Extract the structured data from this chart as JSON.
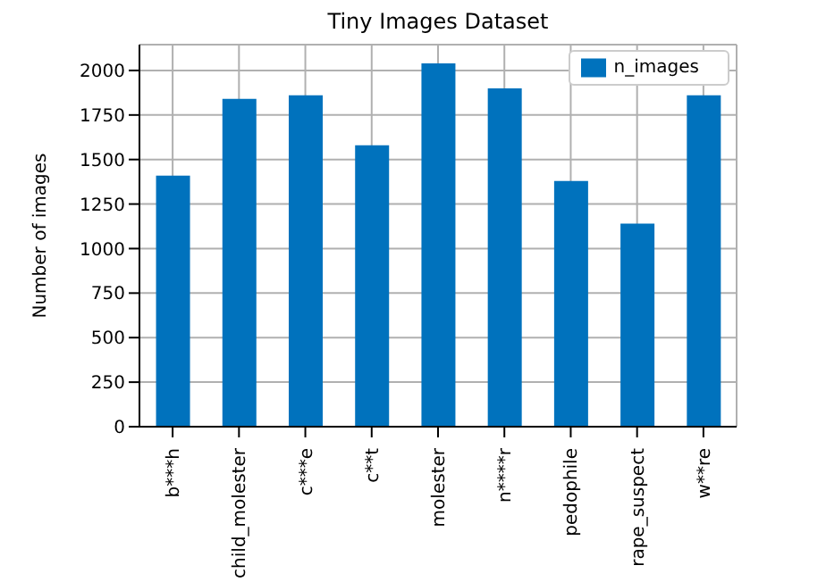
{
  "chart_data": {
    "type": "bar",
    "title": "Tiny Images Dataset",
    "ylabel": "Number of images",
    "categories": [
      "b***h",
      "child_molester",
      "c***e",
      "c**t",
      "molester",
      "n****r",
      "pedophile",
      "rape_suspect",
      "w**re"
    ],
    "series": [
      {
        "name": "n_images",
        "color": "#0072bd",
        "values": [
          1410,
          1840,
          1860,
          1580,
          2040,
          1900,
          1380,
          1140,
          1860
        ]
      }
    ],
    "ylim": [
      0,
      2145
    ],
    "yticks": [
      0,
      250,
      500,
      750,
      1000,
      1250,
      1500,
      1750,
      2000
    ],
    "grid": true,
    "legend": "top right"
  }
}
